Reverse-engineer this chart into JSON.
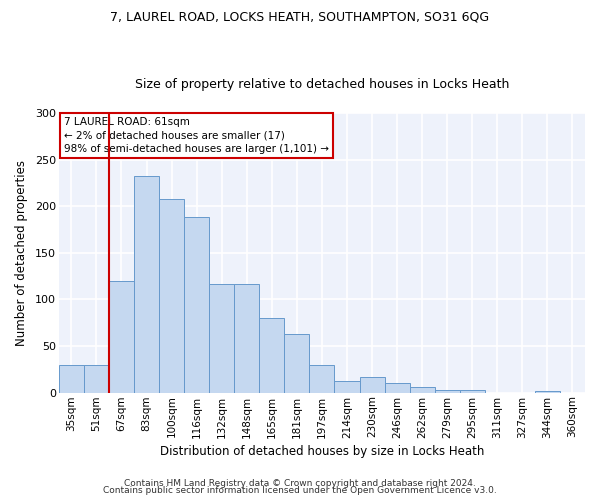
{
  "title1": "7, LAUREL ROAD, LOCKS HEATH, SOUTHAMPTON, SO31 6QG",
  "title2": "Size of property relative to detached houses in Locks Heath",
  "xlabel": "Distribution of detached houses by size in Locks Heath",
  "ylabel": "Number of detached properties",
  "categories": [
    "35sqm",
    "51sqm",
    "67sqm",
    "83sqm",
    "100sqm",
    "116sqm",
    "132sqm",
    "148sqm",
    "165sqm",
    "181sqm",
    "197sqm",
    "214sqm",
    "230sqm",
    "246sqm",
    "262sqm",
    "279sqm",
    "295sqm",
    "311sqm",
    "327sqm",
    "344sqm",
    "360sqm"
  ],
  "values": [
    30,
    30,
    120,
    232,
    208,
    188,
    117,
    117,
    80,
    63,
    30,
    13,
    17,
    10,
    6,
    3,
    3,
    0,
    0,
    2,
    0
  ],
  "bar_color": "#c5d8f0",
  "bar_edge_color": "#6699cc",
  "vline_color": "#cc0000",
  "vline_x": 1.5,
  "annotation_text": "7 LAUREL ROAD: 61sqm\n← 2% of detached houses are smaller (17)\n98% of semi-detached houses are larger (1,101) →",
  "annotation_box_facecolor": "#ffffff",
  "annotation_box_edgecolor": "#cc0000",
  "footer1": "Contains HM Land Registry data © Crown copyright and database right 2024.",
  "footer2": "Contains public sector information licensed under the Open Government Licence v3.0.",
  "ylim": [
    0,
    300
  ],
  "yticks": [
    0,
    50,
    100,
    150,
    200,
    250,
    300
  ],
  "ax_facecolor": "#eef2fb",
  "grid_color": "#ffffff",
  "title1_fontsize": 9,
  "title2_fontsize": 9
}
